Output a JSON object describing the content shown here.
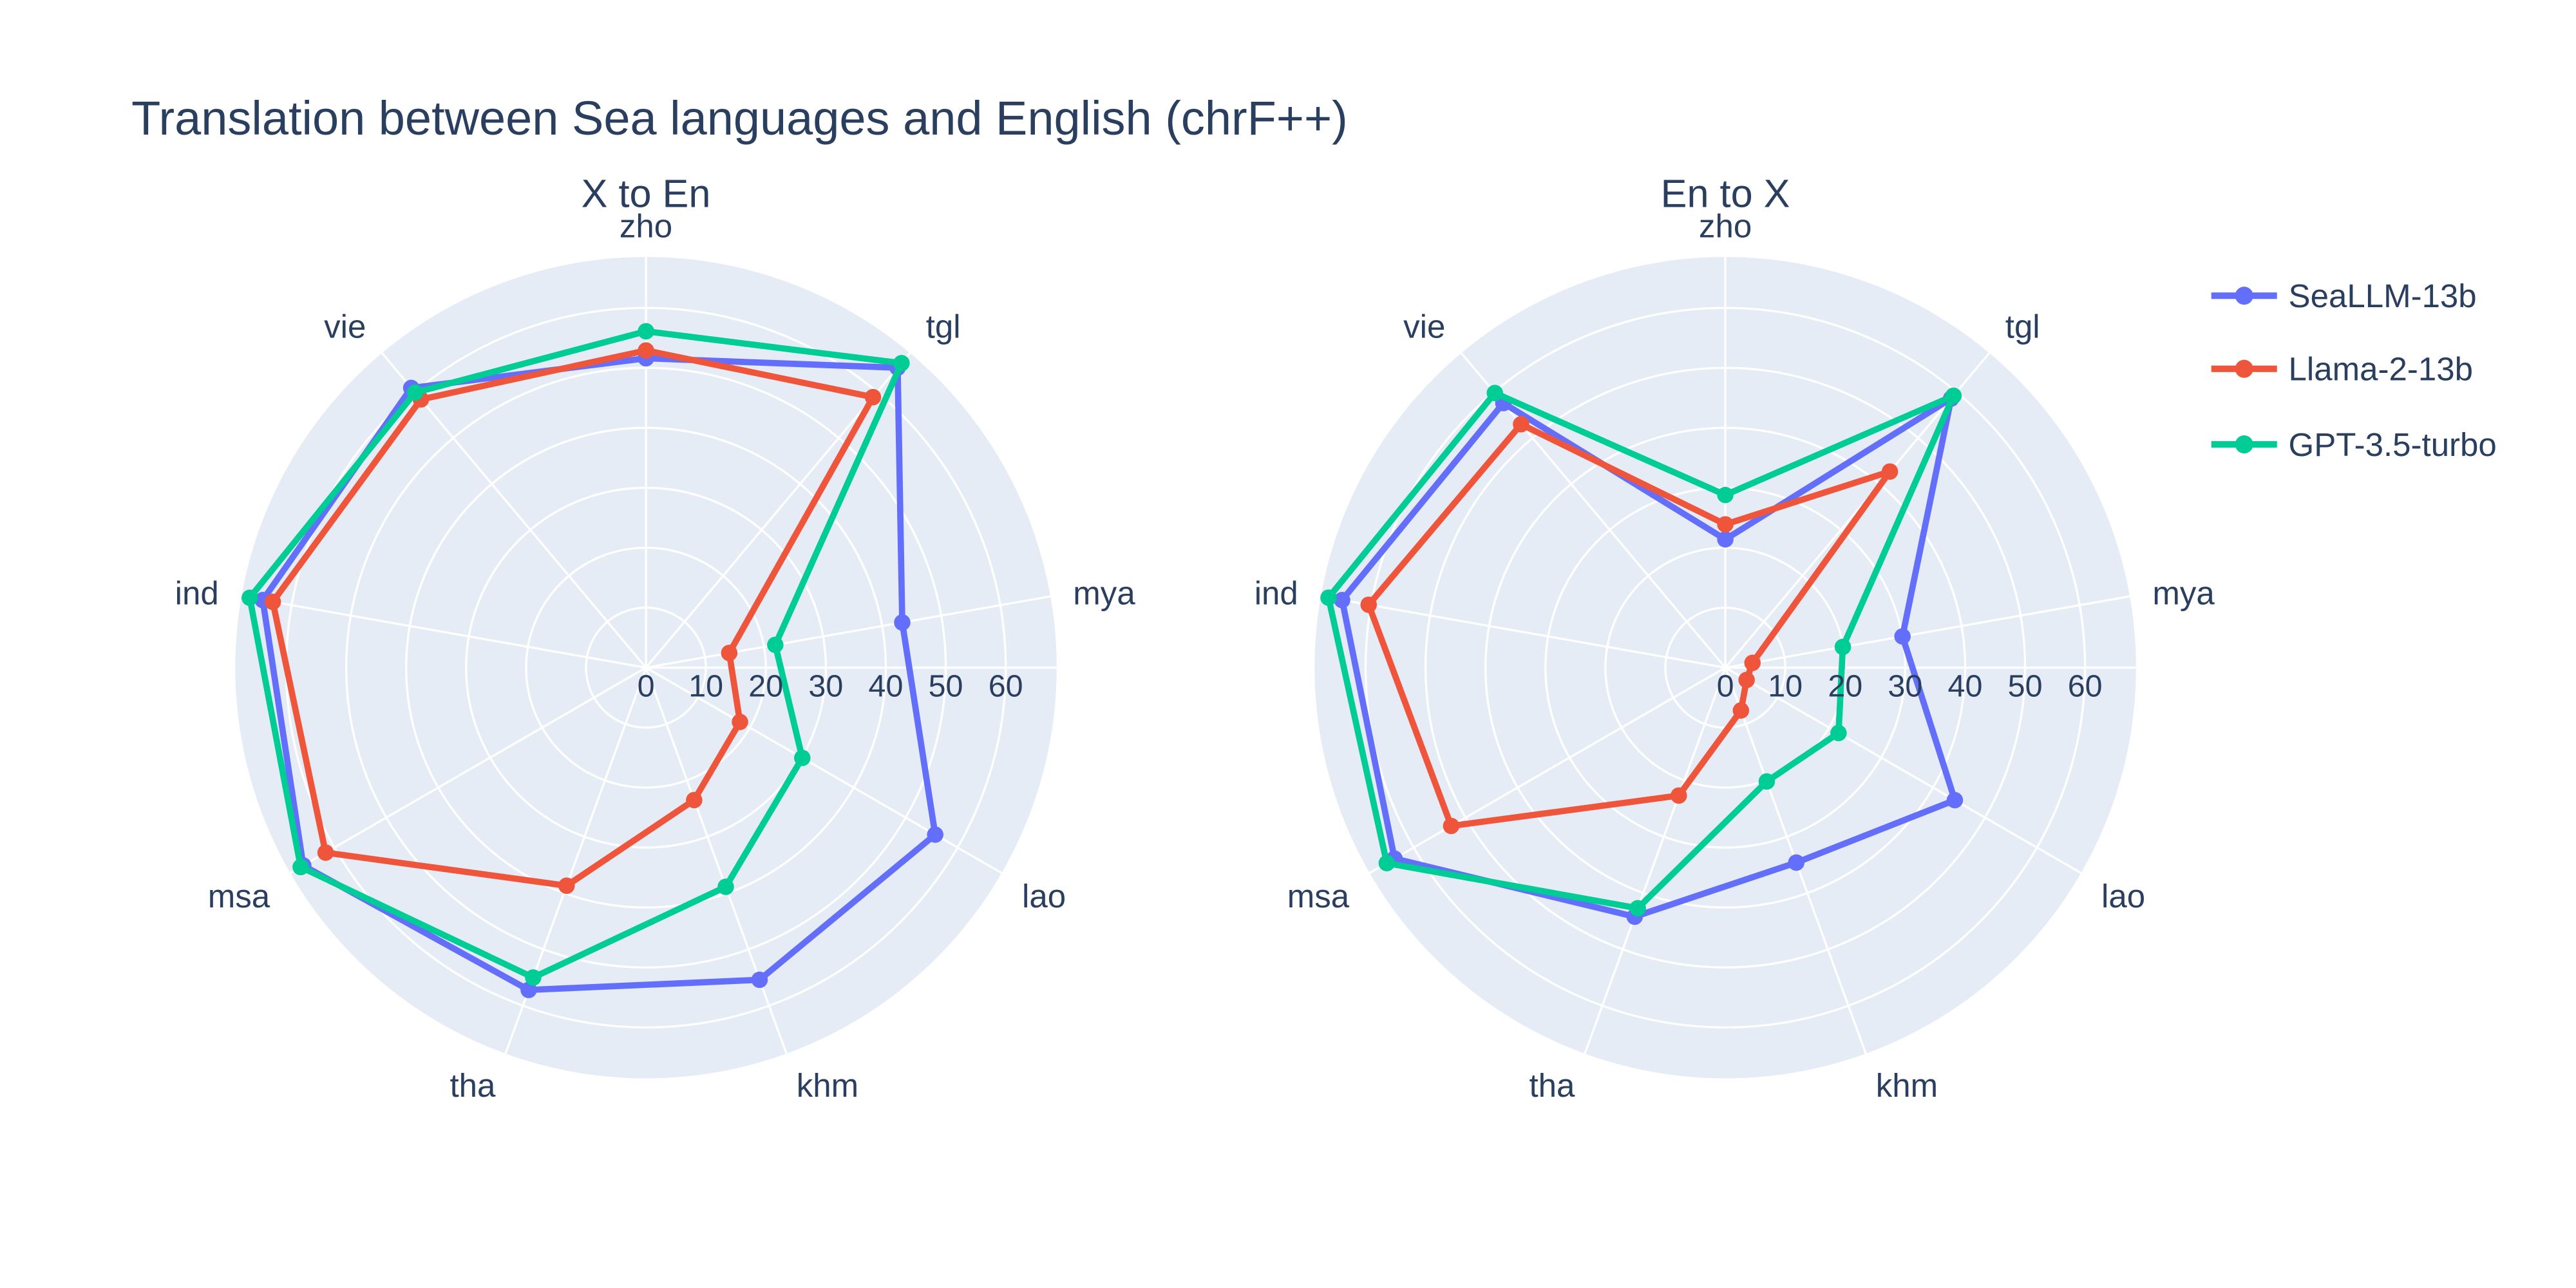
{
  "page": {
    "background": "#ffffff",
    "plot_bg": "#E5ECF6",
    "text_color": "#2a3f5f",
    "grid_color": "#ffffff"
  },
  "title": {
    "text": "Translation between Sea languages and English (chrF++)"
  },
  "legend": {
    "items": [
      {
        "label": "SeaLLM-13b",
        "color": "#636EFA"
      },
      {
        "label": "Llama-2-13b",
        "color": "#EF553B"
      },
      {
        "label": "GPT-3.5-turbo",
        "color": "#00CC96"
      }
    ]
  },
  "axis": {
    "tick_values": [
      0,
      10,
      20,
      30,
      40,
      50,
      60
    ],
    "tick_labels": [
      "0",
      "10",
      "20",
      "30",
      "40",
      "50",
      "60"
    ],
    "range_max": 68.5
  },
  "chart_data": [
    {
      "type": "radar",
      "title": "X to En",
      "categories": [
        "zho",
        "tgl",
        "mya",
        "lao",
        "khm",
        "tha",
        "msa",
        "ind",
        "vie"
      ],
      "angle_start_deg": 90,
      "direction": "clockwise",
      "rticks": [
        0,
        10,
        20,
        30,
        40,
        50,
        60
      ],
      "rmax": 68.5,
      "series": [
        {
          "name": "SeaLLM-13b",
          "color": "#636EFA",
          "values": [
            51.6,
            65.3,
            43.4,
            55.7,
            55.4,
            57.2,
            66.0,
            64.9,
            60.9
          ]
        },
        {
          "name": "Llama-2-13b",
          "color": "#EF553B",
          "values": [
            52.9,
            58.9,
            14.1,
            18.1,
            23.5,
            38.7,
            61.7,
            63.2,
            58.4
          ]
        },
        {
          "name": "GPT-3.5-turbo",
          "color": "#00CC96",
          "values": [
            56.1,
            66.3,
            21.9,
            30.1,
            38.9,
            55.0,
            66.5,
            67.1,
            59.9
          ]
        }
      ]
    },
    {
      "type": "radar",
      "title": "En to X",
      "categories": [
        "zho",
        "tgl",
        "mya",
        "lao",
        "khm",
        "tha",
        "msa",
        "ind",
        "vie"
      ],
      "angle_start_deg": 90,
      "direction": "clockwise",
      "rticks": [
        0,
        10,
        20,
        30,
        40,
        50,
        60
      ],
      "rmax": 68.5,
      "series": [
        {
          "name": "SeaLLM-13b",
          "color": "#636EFA",
          "values": [
            21.4,
            58.6,
            30.0,
            44.2,
            34.6,
            44.2,
            63.7,
            64.9,
            57.6
          ]
        },
        {
          "name": "Llama-2-13b",
          "color": "#EF553B",
          "values": [
            23.9,
            42.7,
            4.6,
            4.1,
            7.6,
            22.7,
            52.8,
            60.4,
            53.0
          ]
        },
        {
          "name": "GPT-3.5-turbo",
          "color": "#00CC96",
          "values": [
            28.8,
            59.2,
            19.9,
            21.8,
            20.2,
            42.7,
            65.2,
            67.2,
            59.8
          ]
        }
      ]
    }
  ]
}
